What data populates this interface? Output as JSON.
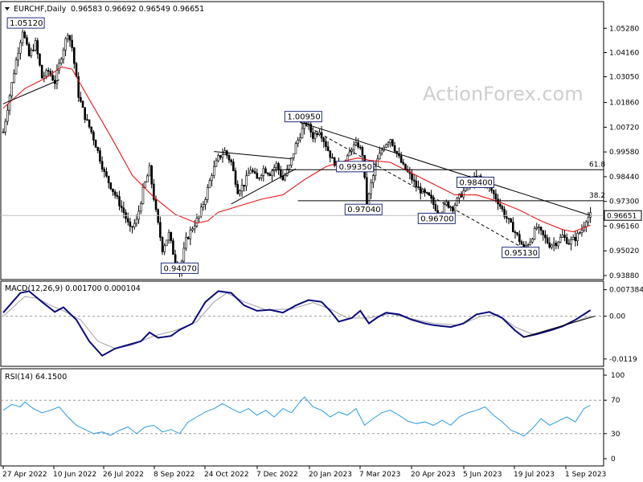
{
  "chart_data": {
    "type": "candlestick",
    "symbol": "EURCHF,Daily",
    "ohlc_text": "0.96583 0.96692 0.96549 0.96651",
    "watermark": "ActionForex.com",
    "last_price": 0.96651,
    "last_price_label": "0.96651",
    "x_tick_labels": [
      "27 Apr 2022",
      "10 Jun 2022",
      "26 Jul 2022",
      "8 Sep 2022",
      "24 Oct 2022",
      "7 Dec 2022",
      "20 Jan 2023",
      "7 Mar 2023",
      "20 Apr 2023",
      "5 Jun 2023",
      "19 Jul 2023",
      "1 Sep 2023"
    ],
    "price_axis": {
      "range": [
        0.9388,
        1.0592
      ],
      "ticks": [
        1.0528,
        1.0416,
        1.0305,
        1.0186,
        1.0072,
        0.9958,
        0.9844,
        0.973,
        0.9616,
        0.9502,
        0.9388
      ],
      "tick_labels": [
        "1.05280",
        "1.04160",
        "1.03050",
        "1.01860",
        "1.00720",
        "0.99580",
        "0.98440",
        "0.97300",
        "0.96160",
        "0.95020",
        "0.93880"
      ]
    },
    "price_path": [
      [
        0,
        1.005
      ],
      [
        3,
        1.022
      ],
      [
        6,
        1.038
      ],
      [
        9,
        1.052
      ],
      [
        12,
        1.04
      ],
      [
        15,
        1.046
      ],
      [
        18,
        1.03
      ],
      [
        21,
        1.033
      ],
      [
        24,
        1.028
      ],
      [
        27,
        1.04
      ],
      [
        30,
        1.051
      ],
      [
        32,
        1.044
      ],
      [
        35,
        1.022
      ],
      [
        38,
        1.012
      ],
      [
        41,
        1.005
      ],
      [
        44,
        0.996
      ],
      [
        47,
        0.986
      ],
      [
        50,
        0.98
      ],
      [
        53,
        0.974
      ],
      [
        56,
        0.968
      ],
      [
        59,
        0.96
      ],
      [
        62,
        0.964
      ],
      [
        65,
        0.978
      ],
      [
        68,
        0.988
      ],
      [
        71,
        0.968
      ],
      [
        74,
        0.951
      ],
      [
        77,
        0.958
      ],
      [
        80,
        0.945
      ],
      [
        82,
        0.9407
      ],
      [
        85,
        0.955
      ],
      [
        88,
        0.961
      ],
      [
        91,
        0.966
      ],
      [
        94,
        0.975
      ],
      [
        97,
        0.986
      ],
      [
        100,
        0.993
      ],
      [
        103,
        0.996
      ],
      [
        106,
        0.991
      ],
      [
        109,
        0.978
      ],
      [
        112,
        0.981
      ],
      [
        115,
        0.988
      ],
      [
        118,
        0.983
      ],
      [
        121,
        0.988
      ],
      [
        124,
        0.986
      ],
      [
        127,
        0.99
      ],
      [
        130,
        0.983
      ],
      [
        133,
        0.989
      ],
      [
        136,
        0.999
      ],
      [
        139,
        1.006
      ],
      [
        141,
        1.0095
      ],
      [
        144,
        1.003
      ],
      [
        147,
        1.006
      ],
      [
        150,
        0.999
      ],
      [
        153,
        0.992
      ],
      [
        156,
        0.989
      ],
      [
        159,
        0.99
      ],
      [
        162,
        0.998
      ],
      [
        165,
        0.999
      ],
      [
        167,
        0.995
      ],
      [
        169,
        0.9704
      ],
      [
        171,
        0.981
      ],
      [
        174,
        0.992
      ],
      [
        177,
        0.999
      ],
      [
        180,
        1.002
      ],
      [
        183,
        0.995
      ],
      [
        186,
        0.989
      ],
      [
        189,
        0.985
      ],
      [
        192,
        0.98
      ],
      [
        195,
        0.977
      ],
      [
        198,
        0.975
      ],
      [
        201,
        0.97
      ],
      [
        203,
        0.967
      ],
      [
        206,
        0.972
      ],
      [
        209,
        0.97
      ],
      [
        212,
        0.975
      ],
      [
        215,
        0.979
      ],
      [
        218,
        0.983
      ],
      [
        221,
        0.984
      ],
      [
        224,
        0.982
      ],
      [
        227,
        0.978
      ],
      [
        230,
        0.973
      ],
      [
        233,
        0.967
      ],
      [
        236,
        0.962
      ],
      [
        239,
        0.957
      ],
      [
        242,
        0.9513
      ],
      [
        245,
        0.955
      ],
      [
        248,
        0.961
      ],
      [
        251,
        0.957
      ],
      [
        254,
        0.953
      ],
      [
        257,
        0.954
      ],
      [
        260,
        0.957
      ],
      [
        263,
        0.954
      ],
      [
        266,
        0.956
      ],
      [
        269,
        0.96
      ],
      [
        271,
        0.965
      ],
      [
        273,
        0.9665
      ]
    ],
    "sma_path": [
      [
        0,
        1.016
      ],
      [
        10,
        1.025
      ],
      [
        20,
        1.03
      ],
      [
        27,
        1.035
      ],
      [
        32,
        1.034
      ],
      [
        40,
        1.02
      ],
      [
        50,
        1.003
      ],
      [
        60,
        0.985
      ],
      [
        70,
        0.975
      ],
      [
        80,
        0.967
      ],
      [
        90,
        0.963
      ],
      [
        95,
        0.964
      ],
      [
        100,
        0.968
      ],
      [
        110,
        0.971
      ],
      [
        120,
        0.974
      ],
      [
        130,
        0.976
      ],
      [
        140,
        0.983
      ],
      [
        150,
        0.989
      ],
      [
        160,
        0.992
      ],
      [
        165,
        0.993
      ],
      [
        170,
        0.992
      ],
      [
        180,
        0.991
      ],
      [
        190,
        0.986
      ],
      [
        200,
        0.981
      ],
      [
        210,
        0.976
      ],
      [
        220,
        0.976
      ],
      [
        230,
        0.973
      ],
      [
        240,
        0.969
      ],
      [
        250,
        0.964
      ],
      [
        260,
        0.96
      ],
      [
        265,
        0.959
      ],
      [
        273,
        0.962
      ]
    ],
    "trendlines": [
      {
        "style": "solid",
        "points": [
          [
            0,
            1.018
          ],
          [
            26,
            1.029
          ]
        ]
      },
      {
        "style": "solid",
        "points": [
          [
            98,
            0.996
          ],
          [
            134,
            0.9926
          ]
        ]
      },
      {
        "style": "solid",
        "points": [
          [
            106,
            0.9718
          ],
          [
            136,
            0.988
          ]
        ]
      },
      {
        "style": "solid",
        "points": [
          [
            138,
            1.0095
          ],
          [
            273,
            0.9665
          ]
        ]
      },
      {
        "style": "dashed",
        "points": [
          [
            138,
            1.0095
          ],
          [
            242,
            0.9513
          ]
        ]
      }
    ],
    "fib_levels": [
      {
        "label": "61.8",
        "value": 0.9876
      },
      {
        "label": "38.2",
        "value": 0.9733
      }
    ],
    "annotations": [
      {
        "label": "1.05120",
        "x": 9,
        "y": 1.0512
      },
      {
        "label": "0.94070",
        "x": 82,
        "y": 0.9407
      },
      {
        "label": "1.00950",
        "x": 141,
        "y": 1.0095
      },
      {
        "label": "0.99350",
        "x": 165,
        "y": 0.9935
      },
      {
        "label": "0.97040",
        "x": 169,
        "y": 0.9704
      },
      {
        "label": "0.96700",
        "x": 203,
        "y": 0.967
      },
      {
        "label": "0.98400",
        "x": 221,
        "y": 0.984
      },
      {
        "label": "0.95130",
        "x": 242,
        "y": 0.9513
      }
    ],
    "macd": {
      "title": "MACD(12,26,9) 0.001700 0.000104",
      "range": [
        -0.0135,
        0.0082
      ],
      "ticks": [
        0.007384,
        0.0,
        -0.0119
      ],
      "tick_labels": [
        "0.007384",
        "0.00",
        "-0.0119"
      ],
      "main_path": [
        [
          0,
          0.001
        ],
        [
          8,
          0.0065
        ],
        [
          12,
          0.007
        ],
        [
          18,
          0.004
        ],
        [
          24,
          0.0012
        ],
        [
          28,
          0.0025
        ],
        [
          34,
          -0.001
        ],
        [
          40,
          -0.007
        ],
        [
          46,
          -0.011
        ],
        [
          52,
          -0.009
        ],
        [
          58,
          -0.008
        ],
        [
          64,
          -0.007
        ],
        [
          68,
          -0.0045
        ],
        [
          72,
          -0.006
        ],
        [
          78,
          -0.0055
        ],
        [
          82,
          -0.0038
        ],
        [
          88,
          -0.002
        ],
        [
          94,
          0.004
        ],
        [
          100,
          0.007
        ],
        [
          106,
          0.0065
        ],
        [
          112,
          0.003
        ],
        [
          118,
          0.0015
        ],
        [
          124,
          0.0018
        ],
        [
          130,
          0.001
        ],
        [
          136,
          0.003
        ],
        [
          142,
          0.0045
        ],
        [
          148,
          0.004
        ],
        [
          152,
          0.0015
        ],
        [
          156,
          -0.0015
        ],
        [
          162,
          -0.0005
        ],
        [
          166,
          0.0015
        ],
        [
          170,
          -0.002
        ],
        [
          174,
          -0.0003
        ],
        [
          178,
          0.001
        ],
        [
          184,
          0.0005
        ],
        [
          190,
          -0.001
        ],
        [
          196,
          -0.002
        ],
        [
          200,
          -0.0025
        ],
        [
          208,
          -0.003
        ],
        [
          214,
          -0.002
        ],
        [
          220,
          0.0005
        ],
        [
          226,
          0.0012
        ],
        [
          232,
          -0.0005
        ],
        [
          238,
          -0.004
        ],
        [
          242,
          -0.0058
        ],
        [
          248,
          -0.005
        ],
        [
          254,
          -0.004
        ],
        [
          260,
          -0.0028
        ],
        [
          266,
          -0.001
        ],
        [
          273,
          0.0017
        ]
      ],
      "signal_path": [
        [
          0,
          0.0
        ],
        [
          10,
          0.0055
        ],
        [
          16,
          0.005
        ],
        [
          22,
          0.003
        ],
        [
          28,
          0.0015
        ],
        [
          36,
          -0.001
        ],
        [
          44,
          -0.007
        ],
        [
          52,
          -0.009
        ],
        [
          60,
          -0.008
        ],
        [
          70,
          -0.0055
        ],
        [
          80,
          -0.004
        ],
        [
          90,
          -0.0015
        ],
        [
          98,
          0.004
        ],
        [
          104,
          0.0065
        ],
        [
          112,
          0.004
        ],
        [
          122,
          0.0018
        ],
        [
          134,
          0.002
        ],
        [
          144,
          0.0038
        ],
        [
          152,
          0.002
        ],
        [
          160,
          -0.0005
        ],
        [
          170,
          -0.0005
        ],
        [
          180,
          0.0007
        ],
        [
          190,
          -0.0007
        ],
        [
          200,
          -0.002
        ],
        [
          212,
          -0.0025
        ],
        [
          222,
          0.0
        ],
        [
          230,
          0.0005
        ],
        [
          238,
          -0.003
        ],
        [
          246,
          -0.005
        ],
        [
          256,
          -0.0038
        ],
        [
          266,
          -0.0015
        ],
        [
          273,
          0.0001
        ]
      ],
      "trendline": [
        [
          242,
          -0.0058
        ],
        [
          275,
          0.0
        ]
      ]
    },
    "rsi": {
      "title": "RSI(14) 64.1500",
      "range": [
        0,
        100
      ],
      "ticks": [
        100,
        70,
        30,
        0
      ],
      "tick_labels": [
        "100",
        "70",
        "30",
        "0"
      ],
      "path": [
        [
          0,
          58
        ],
        [
          4,
          65
        ],
        [
          8,
          62
        ],
        [
          10,
          68
        ],
        [
          14,
          60
        ],
        [
          18,
          55
        ],
        [
          22,
          58
        ],
        [
          26,
          62
        ],
        [
          30,
          50
        ],
        [
          34,
          40
        ],
        [
          38,
          35
        ],
        [
          42,
          30
        ],
        [
          46,
          32
        ],
        [
          50,
          28
        ],
        [
          54,
          34
        ],
        [
          58,
          38
        ],
        [
          62,
          30
        ],
        [
          66,
          38
        ],
        [
          70,
          40
        ],
        [
          74,
          32
        ],
        [
          78,
          35
        ],
        [
          82,
          30
        ],
        [
          86,
          44
        ],
        [
          90,
          50
        ],
        [
          94,
          56
        ],
        [
          98,
          60
        ],
        [
          102,
          66
        ],
        [
          106,
          60
        ],
        [
          110,
          55
        ],
        [
          114,
          60
        ],
        [
          118,
          52
        ],
        [
          122,
          58
        ],
        [
          126,
          50
        ],
        [
          130,
          60
        ],
        [
          134,
          55
        ],
        [
          138,
          68
        ],
        [
          140,
          74
        ],
        [
          144,
          62
        ],
        [
          148,
          58
        ],
        [
          152,
          50
        ],
        [
          156,
          56
        ],
        [
          160,
          52
        ],
        [
          164,
          60
        ],
        [
          168,
          40
        ],
        [
          172,
          48
        ],
        [
          176,
          55
        ],
        [
          180,
          58
        ],
        [
          184,
          52
        ],
        [
          188,
          45
        ],
        [
          192,
          42
        ],
        [
          196,
          44
        ],
        [
          200,
          40
        ],
        [
          204,
          46
        ],
        [
          208,
          40
        ],
        [
          212,
          50
        ],
        [
          216,
          55
        ],
        [
          220,
          58
        ],
        [
          224,
          62
        ],
        [
          228,
          52
        ],
        [
          232,
          44
        ],
        [
          236,
          34
        ],
        [
          240,
          30
        ],
        [
          242,
          27
        ],
        [
          246,
          36
        ],
        [
          250,
          48
        ],
        [
          254,
          40
        ],
        [
          258,
          45
        ],
        [
          262,
          50
        ],
        [
          266,
          44
        ],
        [
          270,
          60
        ],
        [
          273,
          64
        ]
      ]
    }
  }
}
